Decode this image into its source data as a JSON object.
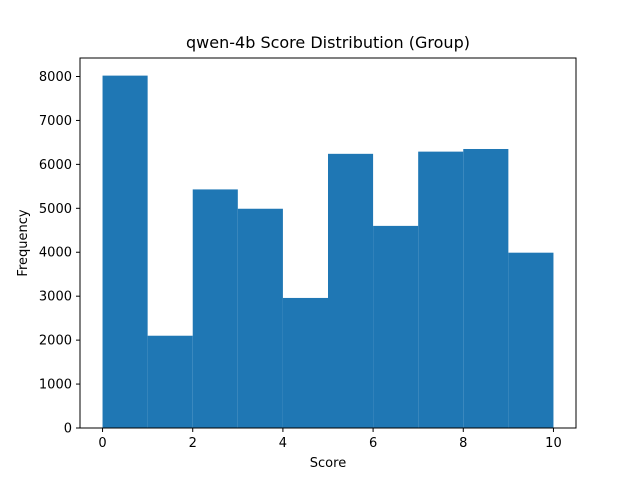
{
  "chart_data": {
    "type": "bar",
    "title": "qwen-4b Score Distribution (Group)",
    "xlabel": "Score",
    "ylabel": "Frequency",
    "bin_edges": [
      0,
      1,
      2,
      3,
      4,
      5,
      6,
      7,
      8,
      9,
      10
    ],
    "values": [
      8020,
      2100,
      5430,
      4990,
      2960,
      6240,
      4600,
      6290,
      6350,
      3990
    ],
    "xlim": [
      -0.5,
      10.5
    ],
    "ylim": [
      0,
      8421
    ],
    "xticks": [
      0,
      2,
      4,
      6,
      8,
      10
    ],
    "yticks": [
      0,
      1000,
      2000,
      3000,
      4000,
      5000,
      6000,
      7000,
      8000
    ],
    "bar_color": "#1f77b4",
    "grid": false,
    "legend": "none"
  }
}
